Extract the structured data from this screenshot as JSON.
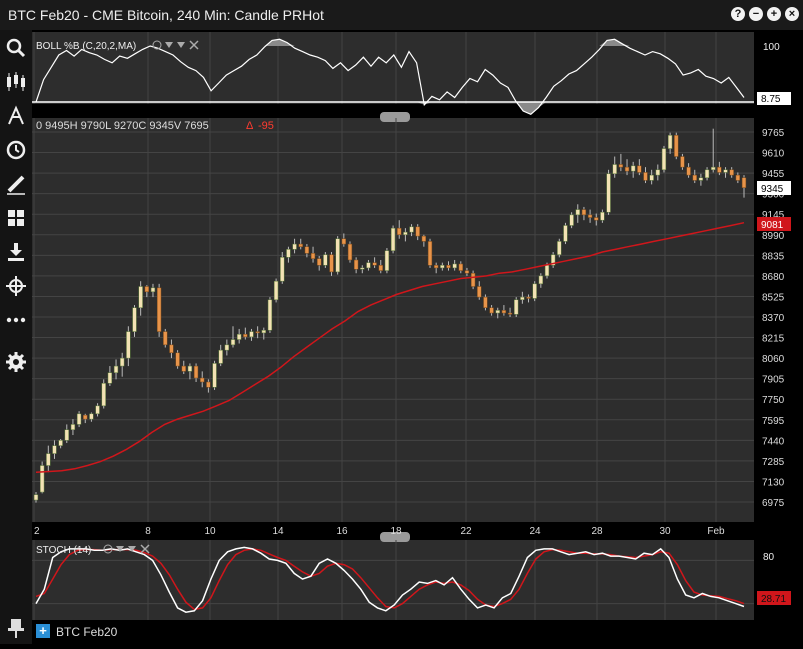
{
  "window": {
    "title": "BTC Feb20 - CME Bitcoin, 240 Min: Candle PRHot",
    "buttons": [
      "?",
      "−",
      "+",
      "×"
    ]
  },
  "sidebar": {
    "icons": [
      "search-icon",
      "candlestick-icon",
      "drawing-tool-icon",
      "clock-icon",
      "pencil-icon",
      "layout-grid-icon",
      "download-icon",
      "crosshair-icon",
      "more-icon",
      "settings-gear-icon"
    ],
    "pin_icon": "pin-icon"
  },
  "boll": {
    "label": "BOLL %B (C,20,2,MA)",
    "axis_label": "100",
    "value": "8.75",
    "values": [
      0,
      40,
      62,
      84,
      92,
      82,
      94,
      88,
      84,
      76,
      70,
      82,
      78,
      86,
      94,
      100,
      96,
      90,
      84,
      72,
      62,
      56,
      44,
      20,
      34,
      48,
      56,
      64,
      76,
      84,
      98,
      110,
      112,
      106,
      96,
      90,
      84,
      80,
      74,
      60,
      70,
      56,
      66,
      80,
      64,
      80,
      70,
      84,
      62,
      90,
      70,
      -5,
      10,
      4,
      18,
      8,
      26,
      42,
      36,
      58,
      48,
      34,
      26,
      2,
      -16,
      -22,
      -10,
      8,
      28,
      38,
      50,
      56,
      68,
      80,
      94,
      110,
      112,
      104,
      96,
      90,
      84,
      90,
      86,
      78,
      68,
      48,
      52,
      58,
      46,
      42,
      34,
      44,
      26,
      8
    ]
  },
  "price": {
    "ohlc_label": "0 9495H 9790L 9270C 9345V 7695",
    "change": "-95",
    "last_price": "9345",
    "ma_value": "9081",
    "y_ticks": [
      "9765",
      "9610",
      "9455",
      "9300",
      "9145",
      "8990",
      "8835",
      "8680",
      "8525",
      "8370",
      "8215",
      "8060",
      "7905",
      "7750",
      "7595",
      "7440",
      "7285",
      "7130",
      "6975"
    ],
    "x_ticks": [
      "2",
      "8",
      "10",
      "14",
      "16",
      "18",
      "22",
      "24",
      "28",
      "30",
      "Feb"
    ],
    "candles": [
      [
        6990,
        7050,
        6970,
        7030
      ],
      [
        7050,
        7280,
        7040,
        7250
      ],
      [
        7250,
        7400,
        7200,
        7340
      ],
      [
        7340,
        7440,
        7300,
        7400
      ],
      [
        7400,
        7450,
        7380,
        7440
      ],
      [
        7440,
        7560,
        7420,
        7520
      ],
      [
        7520,
        7600,
        7480,
        7560
      ],
      [
        7560,
        7660,
        7540,
        7640
      ],
      [
        7630,
        7640,
        7570,
        7600
      ],
      [
        7600,
        7650,
        7580,
        7640
      ],
      [
        7640,
        7720,
        7620,
        7700
      ],
      [
        7700,
        7900,
        7680,
        7870
      ],
      [
        7870,
        8000,
        7850,
        7950
      ],
      [
        7950,
        8050,
        7900,
        8000
      ],
      [
        8000,
        8100,
        7920,
        8060
      ],
      [
        8060,
        8300,
        8000,
        8260
      ],
      [
        8260,
        8460,
        8220,
        8440
      ],
      [
        8440,
        8640,
        8380,
        8600
      ],
      [
        8600,
        8610,
        8520,
        8560
      ],
      [
        8560,
        8620,
        8520,
        8590
      ],
      [
        8590,
        8620,
        8220,
        8260
      ],
      [
        8260,
        8280,
        8140,
        8160
      ],
      [
        8160,
        8200,
        8060,
        8100
      ],
      [
        8100,
        8120,
        7980,
        8000
      ],
      [
        8000,
        8040,
        7940,
        7960
      ],
      [
        7960,
        8020,
        7900,
        8000
      ],
      [
        8000,
        8020,
        7880,
        7910
      ],
      [
        7910,
        7960,
        7840,
        7880
      ],
      [
        7880,
        7900,
        7800,
        7840
      ],
      [
        7840,
        8040,
        7820,
        8020
      ],
      [
        8020,
        8160,
        8000,
        8120
      ],
      [
        8120,
        8200,
        8080,
        8160
      ],
      [
        8160,
        8300,
        8140,
        8200
      ],
      [
        8200,
        8280,
        8170,
        8240
      ],
      [
        8240,
        8290,
        8200,
        8220
      ],
      [
        8220,
        8280,
        8190,
        8260
      ],
      [
        8260,
        8300,
        8210,
        8250
      ],
      [
        8250,
        8290,
        8200,
        8270
      ],
      [
        8270,
        8520,
        8250,
        8500
      ],
      [
        8500,
        8660,
        8480,
        8640
      ],
      [
        8640,
        8860,
        8620,
        8820
      ],
      [
        8820,
        8900,
        8780,
        8880
      ],
      [
        8880,
        8960,
        8850,
        8920
      ],
      [
        8920,
        8960,
        8880,
        8900
      ],
      [
        8900,
        8920,
        8820,
        8850
      ],
      [
        8850,
        8900,
        8780,
        8810
      ],
      [
        8810,
        8830,
        8720,
        8760
      ],
      [
        8760,
        8860,
        8740,
        8840
      ],
      [
        8840,
        8860,
        8680,
        8710
      ],
      [
        8710,
        8980,
        8690,
        8960
      ],
      [
        8960,
        9000,
        8900,
        8920
      ],
      [
        8920,
        8940,
        8780,
        8800
      ],
      [
        8800,
        8820,
        8700,
        8730
      ],
      [
        8730,
        8760,
        8700,
        8740
      ],
      [
        8740,
        8800,
        8720,
        8780
      ],
      [
        8780,
        8820,
        8740,
        8760
      ],
      [
        8760,
        8800,
        8700,
        8720
      ],
      [
        8720,
        8890,
        8700,
        8870
      ],
      [
        8870,
        9060,
        8850,
        9040
      ],
      [
        9040,
        9100,
        8960,
        8990
      ],
      [
        8990,
        9040,
        8940,
        9010
      ],
      [
        9010,
        9070,
        8980,
        9050
      ],
      [
        9050,
        9070,
        8950,
        8980
      ],
      [
        8980,
        8990,
        8900,
        8940
      ],
      [
        8940,
        8960,
        8740,
        8760
      ],
      [
        8760,
        8780,
        8700,
        8740
      ],
      [
        8740,
        8780,
        8720,
        8760
      ],
      [
        8760,
        8790,
        8720,
        8740
      ],
      [
        8740,
        8800,
        8720,
        8770
      ],
      [
        8770,
        8790,
        8700,
        8720
      ],
      [
        8720,
        8740,
        8680,
        8700
      ],
      [
        8700,
        8720,
        8580,
        8600
      ],
      [
        8600,
        8640,
        8500,
        8520
      ],
      [
        8520,
        8540,
        8420,
        8440
      ],
      [
        8440,
        8460,
        8380,
        8400
      ],
      [
        8400,
        8440,
        8360,
        8420
      ],
      [
        8420,
        8460,
        8380,
        8400
      ],
      [
        8400,
        8440,
        8370,
        8390
      ],
      [
        8390,
        8520,
        8370,
        8500
      ],
      [
        8500,
        8560,
        8470,
        8520
      ],
      [
        8520,
        8540,
        8480,
        8510
      ],
      [
        8510,
        8640,
        8490,
        8620
      ],
      [
        8620,
        8700,
        8590,
        8680
      ],
      [
        8680,
        8780,
        8660,
        8760
      ],
      [
        8760,
        8860,
        8740,
        8840
      ],
      [
        8840,
        8960,
        8820,
        8940
      ],
      [
        8940,
        9080,
        8920,
        9060
      ],
      [
        9060,
        9160,
        9040,
        9140
      ],
      [
        9140,
        9220,
        9080,
        9180
      ],
      [
        9180,
        9200,
        9100,
        9140
      ],
      [
        9140,
        9180,
        9080,
        9120
      ],
      [
        9120,
        9150,
        9060,
        9100
      ],
      [
        9100,
        9180,
        9080,
        9160
      ],
      [
        9160,
        9480,
        9140,
        9450
      ],
      [
        9450,
        9580,
        9420,
        9520
      ],
      [
        9520,
        9600,
        9470,
        9500
      ],
      [
        9500,
        9560,
        9440,
        9470
      ],
      [
        9470,
        9540,
        9420,
        9510
      ],
      [
        9510,
        9560,
        9440,
        9460
      ],
      [
        9460,
        9500,
        9380,
        9400
      ],
      [
        9400,
        9480,
        9370,
        9440
      ],
      [
        9440,
        9520,
        9400,
        9480
      ],
      [
        9480,
        9660,
        9460,
        9640
      ],
      [
        9640,
        9760,
        9600,
        9740
      ],
      [
        9740,
        9760,
        9560,
        9580
      ],
      [
        9580,
        9600,
        9480,
        9500
      ],
      [
        9500,
        9530,
        9420,
        9440
      ],
      [
        9440,
        9480,
        9380,
        9400
      ],
      [
        9400,
        9450,
        9360,
        9420
      ],
      [
        9420,
        9500,
        9400,
        9480
      ],
      [
        9480,
        9790,
        9460,
        9500
      ],
      [
        9500,
        9540,
        9440,
        9460
      ],
      [
        9460,
        9500,
        9420,
        9480
      ],
      [
        9480,
        9500,
        9420,
        9440
      ],
      [
        9440,
        9460,
        9380,
        9400
      ],
      [
        9420,
        9440,
        9270,
        9345
      ]
    ],
    "ma": [
      7200,
      7205,
      7210,
      7225,
      7250,
      7280,
      7320,
      7370,
      7430,
      7500,
      7560,
      7600,
      7630,
      7660,
      7700,
      7740,
      7800,
      7860,
      7920,
      7990,
      8070,
      8140,
      8210,
      8280,
      8340,
      8410,
      8460,
      8500,
      8540,
      8570,
      8600,
      8620,
      8640,
      8660,
      8670,
      8680,
      8700,
      8710,
      8730,
      8750,
      8770,
      8790,
      8810,
      8830,
      8860,
      8880,
      8900,
      8920,
      8940,
      8960,
      8980,
      9000,
      9020,
      9040,
      9060,
      9081
    ]
  },
  "stoch": {
    "label": "STOCH (14)",
    "axis_label": "80",
    "value": "28.71",
    "k": [
      20,
      40,
      84,
      92,
      96,
      96,
      96,
      94,
      94,
      96,
      94,
      96,
      92,
      88,
      80,
      60,
      36,
      14,
      8,
      10,
      24,
      54,
      80,
      92,
      96,
      98,
      96,
      90,
      82,
      80,
      76,
      62,
      54,
      58,
      76,
      82,
      76,
      66,
      54,
      40,
      22,
      14,
      10,
      18,
      32,
      40,
      50,
      48,
      52,
      46,
      56,
      40,
      26,
      14,
      18,
      14,
      28,
      34,
      58,
      84,
      94,
      96,
      96,
      92,
      88,
      90,
      92,
      88,
      90,
      86,
      86,
      84,
      82,
      90,
      88,
      96,
      84,
      54,
      32,
      28,
      34,
      30,
      28,
      24,
      20,
      16
    ],
    "d": [
      30,
      34,
      54,
      74,
      88,
      94,
      95,
      95,
      94,
      95,
      95,
      95,
      94,
      91,
      86,
      76,
      60,
      40,
      22,
      12,
      14,
      28,
      52,
      74,
      88,
      94,
      96,
      94,
      89,
      84,
      80,
      72,
      64,
      58,
      62,
      72,
      76,
      74,
      68,
      56,
      42,
      28,
      16,
      14,
      20,
      30,
      40,
      46,
      50,
      48,
      50,
      46,
      38,
      26,
      18,
      16,
      20,
      26,
      40,
      62,
      82,
      92,
      95,
      94,
      92,
      90,
      90,
      89,
      89,
      88,
      86,
      85,
      84,
      86,
      88,
      92,
      90,
      74,
      52,
      36,
      32,
      31,
      30,
      27,
      24,
      20
    ]
  },
  "bottom_tab": {
    "label": "BTC Feb20",
    "icon": "plus-icon"
  },
  "colors": {
    "panel_bg": "#2d2d2d",
    "grid": "#444444",
    "up_candle": "#f3e2b4",
    "down_candle": "#e8944a",
    "ma_line": "#d0161b",
    "stoch_k": "#ffffff",
    "stoch_d": "#d0161b",
    "change_red": "#ff3b30"
  }
}
